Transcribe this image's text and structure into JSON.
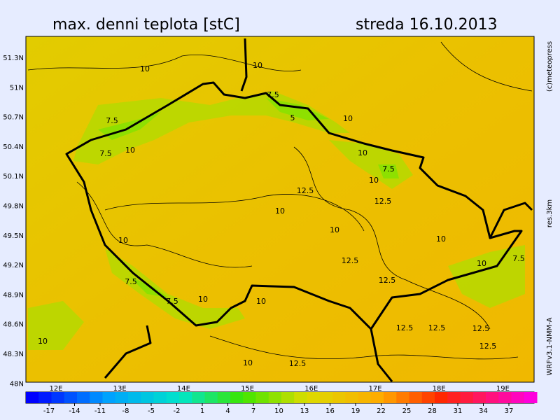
{
  "header": {
    "title": "max. denni teplota [stC]",
    "date": "streda 16.10.2013"
  },
  "side_labels": [
    "(c)meteopress",
    "res.3km",
    "WRFv3.1-NMM-A"
  ],
  "lat_labels": [
    "51.3N",
    "51N",
    "50.7N",
    "50.4N",
    "50.1N",
    "49.8N",
    "49.5N",
    "49.2N",
    "48.9N",
    "48.6N",
    "48.3N",
    "48N"
  ],
  "lon_labels": [
    "12E",
    "13E",
    "14E",
    "15E",
    "16E",
    "17E",
    "18E",
    "19E"
  ],
  "contour_labels": [
    10,
    10,
    7.5,
    7.5,
    10,
    5,
    7.5,
    10,
    10,
    7.5,
    10,
    12.5,
    12.5,
    10,
    10,
    10,
    10,
    12.5,
    10,
    7.5,
    7.5,
    12.5,
    10,
    10,
    7.5,
    12.5,
    12.5,
    12.5,
    10,
    12.5,
    10,
    12.5
  ],
  "colorbar_ticks": [
    -17,
    -14,
    -11,
    -8,
    -5,
    -2,
    1,
    4,
    7,
    10,
    13,
    16,
    19,
    22,
    25,
    28,
    31,
    34,
    37
  ]
}
